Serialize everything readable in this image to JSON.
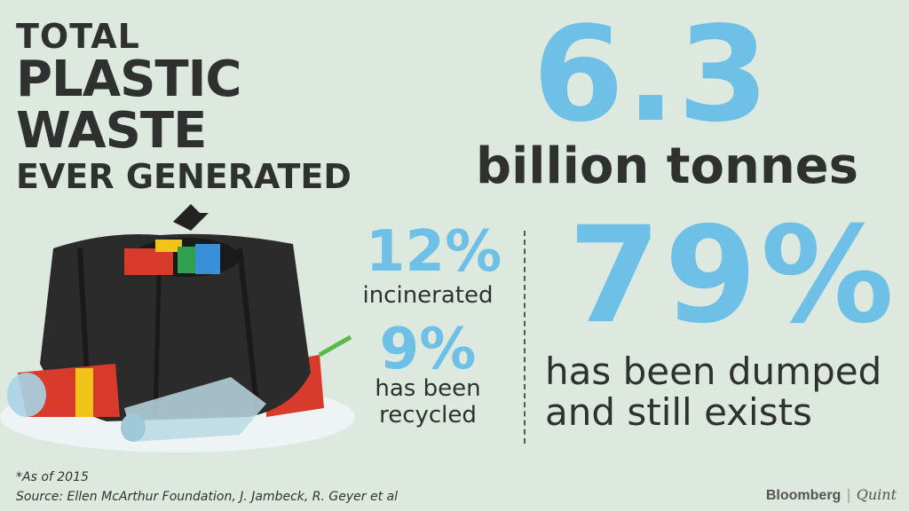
{
  "title": {
    "line1": "TOTAL",
    "line2": "PLASTIC",
    "line3": "WASTE",
    "line4": "EVER GENERATED"
  },
  "total": {
    "value": "6.3",
    "unit": "billion tonnes"
  },
  "stats": {
    "incinerated": {
      "value": "12%",
      "label": "incinerated"
    },
    "recycled": {
      "value": "9%",
      "label_line1": "has been",
      "label_line2": "recycled"
    },
    "dumped": {
      "value": "79%",
      "label_line1": "has been dumped",
      "label_line2": "and still exists"
    }
  },
  "footnote": "*As of 2015",
  "source": "Source: Ellen McArthur Foundation, J. Jambeck, R. Geyer et al",
  "brand": {
    "name1": "Bloomberg",
    "separator": "|",
    "name2": "Quint"
  },
  "colors": {
    "background": "#dde8de",
    "accent": "#6ec0e6",
    "text": "#2f3131"
  },
  "illustration": "garbage-bag-with-plastic-bottles"
}
